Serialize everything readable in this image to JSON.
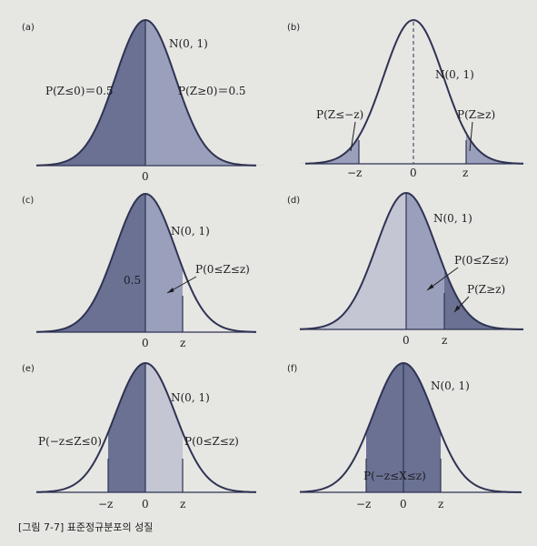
{
  "caption": "[그림 7-7] 표준정규분포의 성질",
  "colors": {
    "background": "#e6e6e3",
    "curve": "#2f3352",
    "shade_dark": "#6a7193",
    "shade_light": "#9aa0bb",
    "shade_pale": "#c4c6d3"
  },
  "panels": [
    {
      "tag": "(a)",
      "dist": "N(0, 1)",
      "ticks": [
        "0"
      ],
      "labels": [
        "P(Z≤0)＝0.5",
        "P(Z≥0)＝0.5"
      ]
    },
    {
      "tag": "(b)",
      "dist": "N(0, 1)",
      "ticks": [
        "−z",
        "0",
        "z"
      ],
      "labels": [
        "P(Z≤−z)",
        "P(Z≥z)"
      ]
    },
    {
      "tag": "(c)",
      "dist": "N(0, 1)",
      "ticks": [
        "0",
        "z"
      ],
      "labels": [
        "0.5",
        "P(0≤Z≤z)"
      ]
    },
    {
      "tag": "(d)",
      "dist": "N(0, 1)",
      "ticks": [
        "0",
        "z"
      ],
      "labels": [
        "P(0≤Z≤z)",
        "P(Z≥z)"
      ]
    },
    {
      "tag": "(e)",
      "dist": "N(0, 1)",
      "ticks": [
        "−z",
        "0",
        "z"
      ],
      "labels": [
        "P(−z≤Z≤0)",
        "P(0≤Z≤z)"
      ]
    },
    {
      "tag": "(f)",
      "dist": "N(0, 1)",
      "ticks": [
        "−z",
        "0",
        "z"
      ],
      "labels": [
        "P(−z≤X≤z)"
      ]
    }
  ]
}
